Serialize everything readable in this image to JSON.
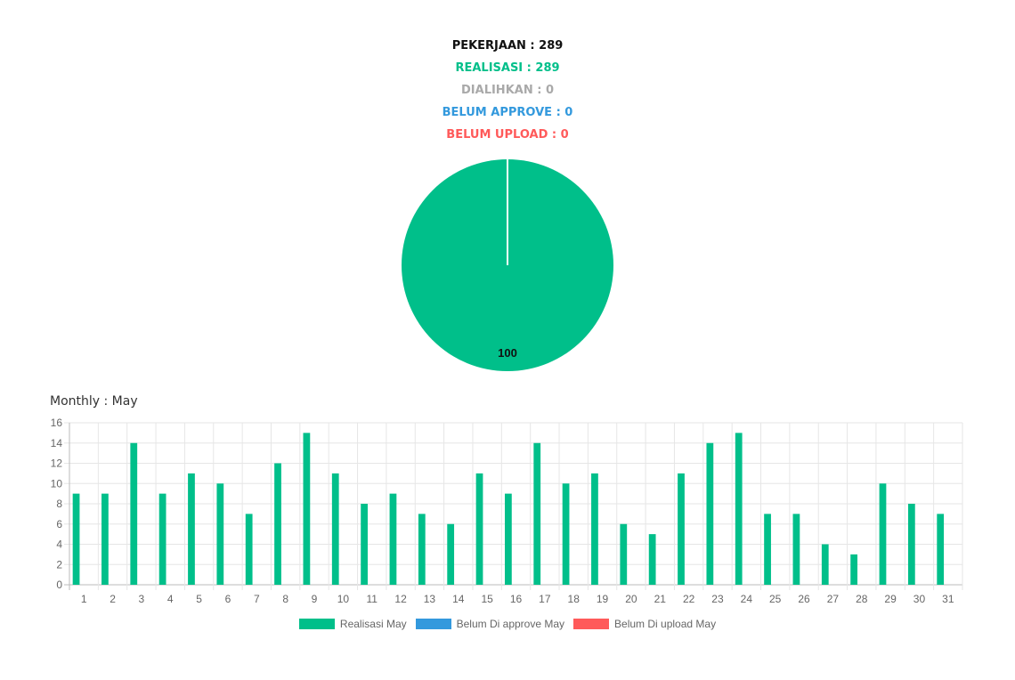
{
  "summary": {
    "pekerjaan": "PEKERJAAN : 289",
    "realisasi": "REALISASI : 289",
    "dialihkan": "DIALIHKAN : 0",
    "belum_approve": "BELUM APPROVE : 0",
    "belum_upload": "BELUM UPLOAD : 0"
  },
  "colors": {
    "black": "#111111",
    "green": "#00bf8a",
    "gray": "#a9a9a9",
    "blue": "#3399dd",
    "red": "#ff5a5a",
    "grid": "#e6e6e6",
    "tick": "#666666"
  },
  "monthly_title": "Monthly : May",
  "chart_data": [
    {
      "type": "pie",
      "slices": [
        {
          "value": 100,
          "color": "#00bf8a",
          "label": "100"
        }
      ]
    },
    {
      "type": "bar",
      "categories": [
        "1",
        "2",
        "3",
        "4",
        "5",
        "6",
        "7",
        "8",
        "9",
        "10",
        "11",
        "12",
        "13",
        "14",
        "15",
        "16",
        "17",
        "18",
        "19",
        "20",
        "21",
        "22",
        "23",
        "24",
        "25",
        "26",
        "27",
        "28",
        "29",
        "30",
        "31"
      ],
      "series": [
        {
          "name": "Realisasi May",
          "color": "#00bf8a",
          "values": [
            9,
            9,
            14,
            9,
            11,
            10,
            7,
            12,
            15,
            11,
            8,
            9,
            7,
            6,
            11,
            9,
            14,
            10,
            11,
            6,
            5,
            11,
            14,
            15,
            7,
            7,
            4,
            3,
            10,
            8,
            7
          ]
        },
        {
          "name": "Belum Di approve May",
          "color": "#3399dd",
          "values": [
            0,
            0,
            0,
            0,
            0,
            0,
            0,
            0,
            0,
            0,
            0,
            0,
            0,
            0,
            0,
            0,
            0,
            0,
            0,
            0,
            0,
            0,
            0,
            0,
            0,
            0,
            0,
            0,
            0,
            0,
            0
          ]
        },
        {
          "name": "Belum Di upload May",
          "color": "#ff5a5a",
          "values": [
            0,
            0,
            0,
            0,
            0,
            0,
            0,
            0,
            0,
            0,
            0,
            0,
            0,
            0,
            0,
            0,
            0,
            0,
            0,
            0,
            0,
            0,
            0,
            0,
            0,
            0,
            0,
            0,
            0,
            0,
            0
          ]
        }
      ],
      "ylim": [
        0,
        16
      ],
      "yticks": [
        0,
        2,
        4,
        6,
        8,
        10,
        12,
        14,
        16
      ],
      "grid": true,
      "legend_position": "bottom"
    }
  ]
}
